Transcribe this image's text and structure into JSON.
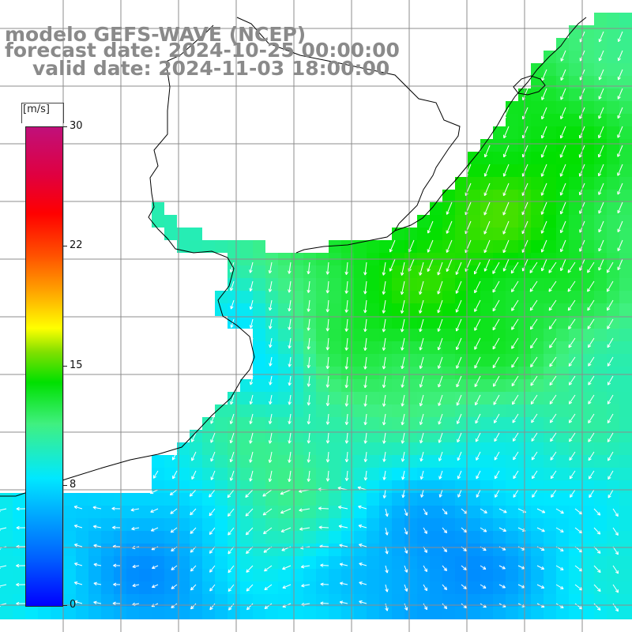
{
  "header": {
    "model": "modelo GEFS-WAVE (NCEP)",
    "forecast": "forecast date: 2024-10-25 00:00:00",
    "valid": "valid date: 2024-11-03 18:00:00"
  },
  "colorbar": {
    "unit": "[m/s]",
    "min": 0,
    "max": 30,
    "tick_labels": [
      "30",
      "22",
      "15",
      "8",
      "0"
    ],
    "tick_values": [
      30,
      22,
      15,
      8,
      0
    ]
  },
  "map": {
    "field": "wind speed with direction arrows",
    "land_color": "#ffffff",
    "coast_color": "#000000",
    "grid_color": "#8c8c8c",
    "value_range": [
      0,
      30
    ]
  },
  "colors": {
    "title_gray": "#8a8a8a"
  }
}
